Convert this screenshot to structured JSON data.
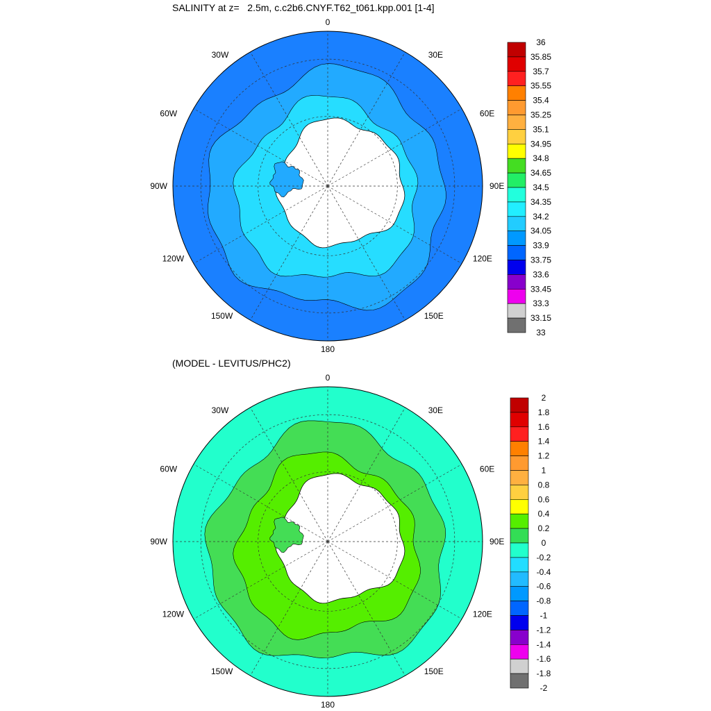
{
  "panels": [
    {
      "title": "SALINITY at z=   2.5m, c.c2b6.CNYF.T62_t061.kpp.001 [1-4]",
      "lon_labels": {
        "top": "0",
        "tr": "30E",
        "tl": "30W",
        "r1": "60E",
        "l1": "60W",
        "r": "90E",
        "l": "90W",
        "r3": "120E",
        "l3": "120W",
        "r4": "150E",
        "l4": "150W",
        "bottom": "180"
      },
      "colorbar": {
        "labels": [
          "36",
          "35.85",
          "35.7",
          "35.55",
          "35.4",
          "35.25",
          "35.1",
          "34.95",
          "34.8",
          "34.65",
          "34.5",
          "34.35",
          "34.2",
          "34.05",
          "33.9",
          "33.75",
          "33.6",
          "33.45",
          "33.3",
          "33.15",
          "33"
        ],
        "colors": [
          "#c00000",
          "#e00000",
          "#ff2020",
          "#ff8000",
          "#ff9a30",
          "#ffb040",
          "#ffd040",
          "#ffff00",
          "#44dd22",
          "#22ee66",
          "#22ffdd",
          "#22eeff",
          "#22ccff",
          "#0099ff",
          "#0066ff",
          "#0000ee",
          "#8800cc",
          "#ee00ee",
          "#d0d0d0",
          "#707070"
        ]
      },
      "map_colors": {
        "outer": "#1a80ff",
        "band1": "#22aaff",
        "band2": "#26ddff",
        "ice": "#ffffff"
      }
    },
    {
      "title": "(MODEL - LEVITUS/PHC2)",
      "lon_labels": {
        "top": "0",
        "tr": "30E",
        "tl": "30W",
        "r1": "60E",
        "l1": "60W",
        "r": "90E",
        "l": "90W",
        "r3": "120E",
        "l3": "120W",
        "r4": "150E",
        "l4": "150W",
        "bottom": "180"
      },
      "colorbar": {
        "labels": [
          "2",
          "1.8",
          "1.6",
          "1.4",
          "1.2",
          "1",
          "0.8",
          "0.6",
          "0.4",
          "0.2",
          "0",
          "-0.2",
          "-0.4",
          "-0.6",
          "-0.8",
          "-1",
          "-1.2",
          "-1.4",
          "-1.6",
          "-1.8",
          "-2"
        ],
        "colors": [
          "#c00000",
          "#e00000",
          "#ff2020",
          "#ff8000",
          "#ff9a30",
          "#ffb040",
          "#ffd040",
          "#ffff00",
          "#55ee00",
          "#33dd55",
          "#22ffcc",
          "#22ddff",
          "#22bbff",
          "#0099ff",
          "#0066ff",
          "#0000ee",
          "#8800cc",
          "#ee00ee",
          "#d0d0d0",
          "#707070"
        ]
      },
      "map_colors": {
        "outer": "#22ffcc",
        "band1": "#44dd55",
        "band2": "#55ee00",
        "ice": "#ffffff"
      }
    }
  ]
}
